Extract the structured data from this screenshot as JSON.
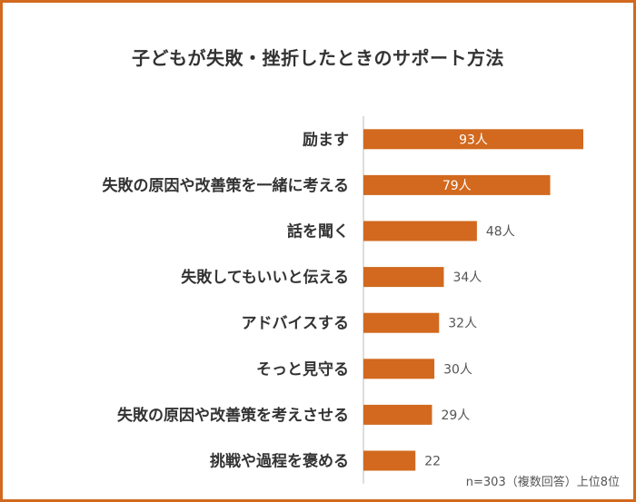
{
  "title": "子どもが失敗・挫折したときのサポート方法",
  "note": "n=303（複数回答）上位8位",
  "colors": {
    "bar": "#d2691e",
    "frame": "#d2691e",
    "highlight": "#f4d5a0"
  },
  "chart_data": {
    "type": "bar",
    "orientation": "horizontal",
    "categories": [
      "励ます",
      "失敗の原因や改善策を一緒に考える",
      "話を聞く",
      "失敗してもいいと伝える",
      "アドバイスする",
      "そっと見守る",
      "失敗の原因や改善策を考えさせる",
      "挑戦や過程を褒める"
    ],
    "values": [
      93,
      79,
      48,
      34,
      32,
      30,
      29,
      22
    ],
    "data_labels": [
      "93人",
      "79人",
      "48人",
      "34人",
      "32人",
      "30人",
      "29人",
      "22"
    ],
    "xlim": [
      0,
      93
    ]
  }
}
